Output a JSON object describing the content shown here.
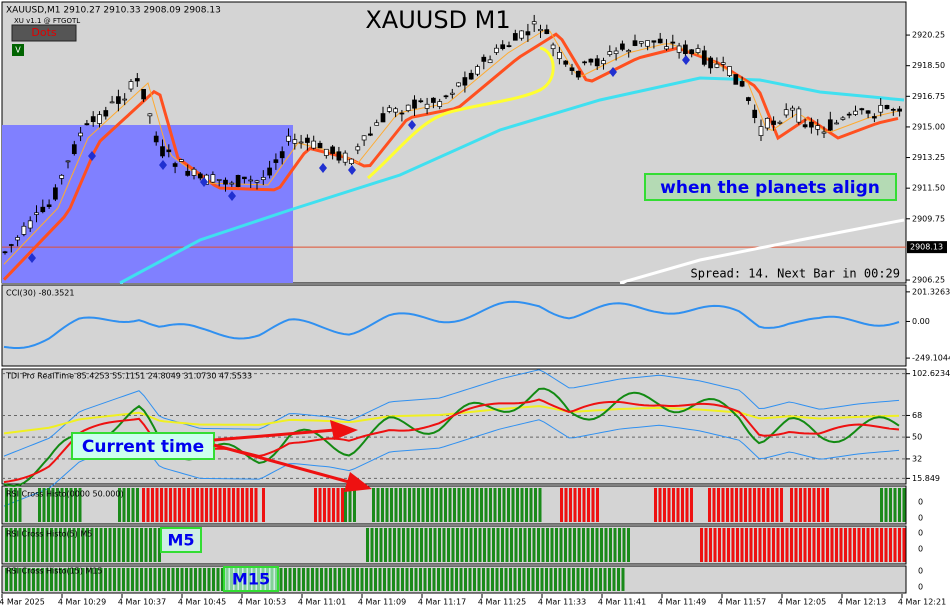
{
  "window": {
    "header": "XAUUSD,M1  2910.27 2910.33 2908.09 2908.13",
    "title": "XAUUSD M1",
    "indicator_label": "XU v1.1 @ FTGOTL",
    "button": "Dots",
    "badge": "V",
    "spread": "Spread: 14. Next Bar in 00:29",
    "annotation_main": "when the planets align",
    "annotation_time": "Current time",
    "annotation_m5": "M5",
    "annotation_m15": "M15"
  },
  "price_panel": {
    "ylim": [
      2906.08,
      2922.14
    ],
    "yticks": [
      2920.25,
      {
        "value": 2918.5,
        "label": "2918.50"
      },
      2916.75,
      {
        "value": 2915,
        "label": "2915.00"
      },
      2913.25,
      {
        "value": 2911.5,
        "label": "2911.50"
      },
      2909.75,
      2906.25
    ],
    "current": 2908.13
  },
  "cci_panel": {
    "label": "CCI(30) -80.3521",
    "ylim": [
      -303,
      248
    ],
    "yticks": [
      201.3263,
      {
        "value": 0,
        "label": "0.00"
      },
      -249.1044
    ]
  },
  "tdi_panel": {
    "label": "TDI Pro RealTime 85.4253 55.1151 24.8049 31.0730 47.5533",
    "ylim": [
      11.2,
      106.5
    ],
    "yticks": [
      102.6234,
      68,
      50,
      32,
      15.849
    ]
  },
  "histo_panels": [
    {
      "label": "RSI Cross Histo(0000 50.000)",
      "yticks": [
        "0",
        "0"
      ]
    },
    {
      "label": "RSI Cross Histo(5) M5",
      "yticks": [
        "0",
        "0"
      ]
    },
    {
      "label": "RSI Cross Histo(15) M15",
      "yticks": [
        "0",
        "0"
      ]
    }
  ],
  "time_axis": [
    "4 Mar 2025",
    "4 Mar 10:29",
    "4 Mar 10:37",
    "4 Mar 10:45",
    "4 Mar 10:53",
    "4 Mar 11:01",
    "4 Mar 11:09",
    "4 Mar 11:17",
    "4 Mar 11:25",
    "4 Mar 11:33",
    "4 Mar 11:41",
    "4 Mar 11:49",
    "4 Mar 11:57",
    "4 Mar 12:05",
    "4 Mar 12:13",
    "4 Mar 12:21"
  ]
}
